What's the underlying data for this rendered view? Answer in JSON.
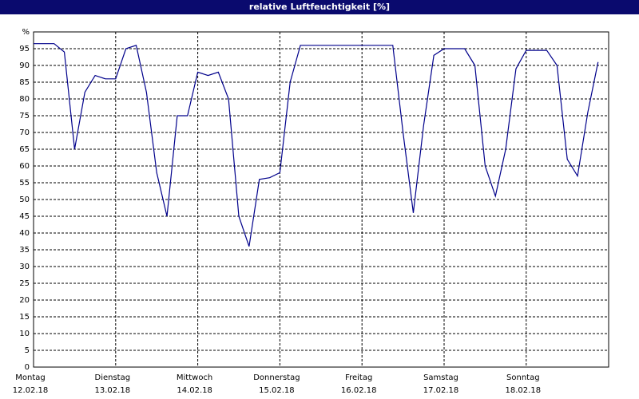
{
  "chart_data": {
    "type": "line",
    "title": "relative Luftfeuchtigkeit [%]",
    "categories": [
      "Montag",
      null,
      null,
      null,
      null,
      null,
      null,
      null,
      "Dienstag",
      null,
      null,
      null,
      null,
      null,
      null,
      null,
      "Mittwoch",
      null,
      null,
      null,
      null,
      null,
      null,
      null,
      "Donnerstag",
      null,
      null,
      null,
      null,
      null,
      null,
      null,
      "Freitag",
      null,
      null,
      null,
      null,
      null,
      null,
      null,
      "Samstag",
      null,
      null,
      null,
      null,
      null,
      null,
      null,
      "Sonntag",
      null,
      null,
      null,
      null,
      null,
      null,
      null
    ],
    "dates": [
      "12.02.18",
      null,
      null,
      null,
      null,
      null,
      null,
      null,
      "13.02.18",
      null,
      null,
      null,
      null,
      null,
      null,
      null,
      "14.02.18",
      null,
      null,
      null,
      null,
      null,
      null,
      null,
      "15.02.18",
      null,
      null,
      null,
      null,
      null,
      null,
      null,
      "16.02.18",
      null,
      null,
      null,
      null,
      null,
      null,
      null,
      "17.02.18",
      null,
      null,
      null,
      null,
      null,
      null,
      null,
      "18.02.18",
      null,
      null,
      null,
      null,
      null,
      null,
      null
    ],
    "series": [
      {
        "color": "#00008b",
        "values": [
          96.5,
          96.5,
          96.5,
          94,
          65,
          82,
          87,
          86,
          86,
          95,
          96,
          82,
          58,
          45,
          75,
          75,
          88,
          87,
          88,
          80,
          45,
          36,
          56,
          56.5,
          58,
          85,
          96,
          96,
          96,
          96,
          96,
          96,
          96,
          96,
          96,
          96,
          70,
          46,
          72,
          93,
          95,
          95,
          95,
          90,
          60,
          51,
          65,
          89,
          94.5,
          94.5,
          94.5,
          90,
          62,
          57,
          76,
          91
        ]
      }
    ],
    "ylim": [
      0,
      100
    ],
    "yticks": [
      0,
      5,
      10,
      15,
      20,
      25,
      30,
      35,
      40,
      45,
      50,
      55,
      60,
      65,
      70,
      75,
      80,
      85,
      90,
      95,
      {
        "value": 100,
        "label": "%"
      }
    ],
    "grid": true
  }
}
